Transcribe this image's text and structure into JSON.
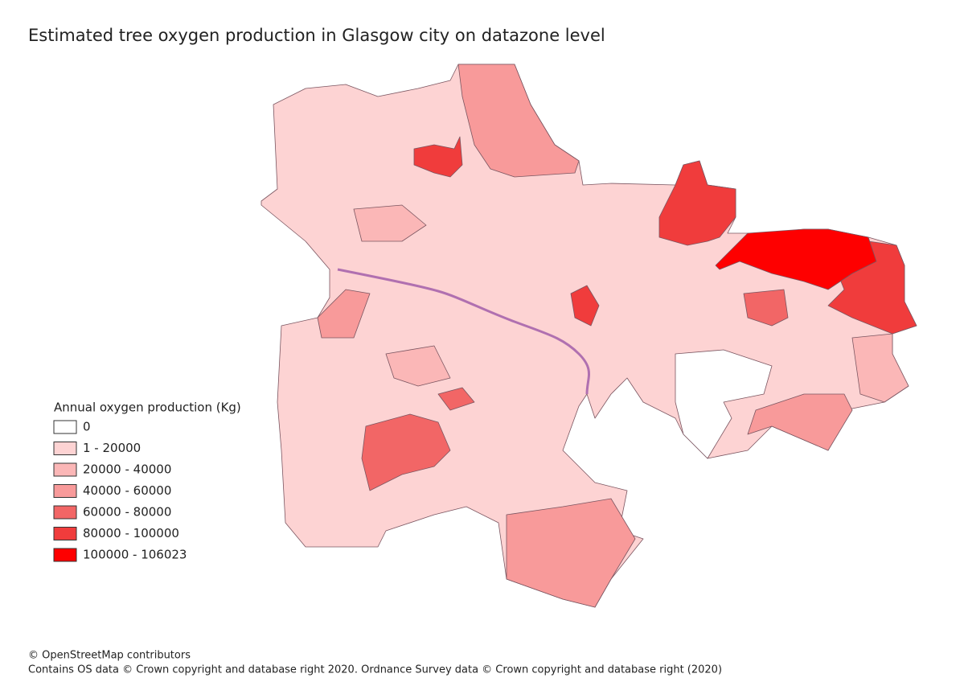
{
  "title": "Estimated tree oxygen production in Glasgow city on datazone level",
  "legend": {
    "title": "Annual oxygen production (Kg)",
    "items": [
      {
        "label": "0",
        "color": "#ffffff"
      },
      {
        "label": "1 - 20000",
        "color": "#fdd3d3"
      },
      {
        "label": "20000 - 40000",
        "color": "#fbb7b7"
      },
      {
        "label": "40000 - 60000",
        "color": "#f89a9a"
      },
      {
        "label": "60000 - 80000",
        "color": "#f26666"
      },
      {
        "label": "80000 - 100000",
        "color": "#f03c3c"
      },
      {
        "label": "100000 - 106023",
        "color": "#fe0000"
      }
    ]
  },
  "attribution": [
    "© OpenStreetMap contributors",
    "Contains OS data © Crown copyright and database right 2020. Ordnance Survey data © Crown copyright and database right (2020)"
  ]
}
